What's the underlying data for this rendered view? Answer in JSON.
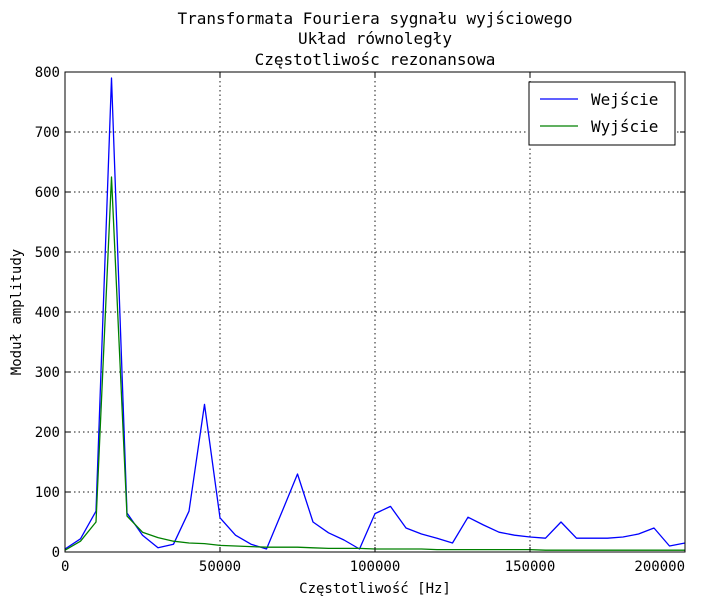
{
  "chart_data": {
    "type": "line",
    "title_lines": [
      "Transformata Fouriera sygnału wyjściowego",
      "Układ równoległy",
      "Częstotliwośc rezonansowa"
    ],
    "xlabel": "Częstotliwość [Hz]",
    "ylabel": "Moduł amplitudy",
    "xlim": [
      0,
      200000
    ],
    "ylim": [
      0,
      800
    ],
    "xticks": [
      0,
      50000,
      100000,
      150000,
      200000
    ],
    "yticks": [
      0,
      100,
      200,
      300,
      400,
      500,
      600,
      700,
      800
    ],
    "grid": true,
    "legend_position": "top-right",
    "x": [
      0,
      5000,
      10000,
      15000,
      20000,
      25000,
      30000,
      35000,
      40000,
      45000,
      50000,
      55000,
      60000,
      65000,
      70000,
      75000,
      80000,
      85000,
      90000,
      95000,
      100000,
      105000,
      110000,
      115000,
      120000,
      125000,
      130000,
      135000,
      140000,
      145000,
      150000,
      155000,
      160000,
      165000,
      170000,
      175000,
      180000,
      185000,
      190000,
      195000,
      200000
    ],
    "series": [
      {
        "name": "Wejście",
        "color": "#0000ff",
        "values": [
          5,
          22,
          68,
          790,
          65,
          28,
          7,
          13,
          68,
          246,
          57,
          28,
          13,
          5,
          67,
          130,
          50,
          32,
          20,
          5,
          64,
          76,
          40,
          30,
          23,
          15,
          58,
          45,
          33,
          28,
          25,
          23,
          50,
          23,
          23,
          23,
          25,
          30,
          40,
          10,
          15
        ]
      },
      {
        "name": "Wyjście",
        "color": "#008000",
        "values": [
          3,
          18,
          50,
          625,
          60,
          33,
          24,
          18,
          15,
          14,
          11,
          10,
          9,
          8,
          8,
          8,
          7,
          6,
          6,
          6,
          5,
          5,
          5,
          5,
          4,
          4,
          4,
          4,
          4,
          4,
          4,
          3,
          3,
          3,
          3,
          3,
          3,
          3,
          3,
          3,
          3
        ]
      }
    ]
  }
}
